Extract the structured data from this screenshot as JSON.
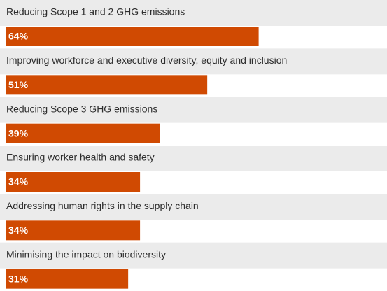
{
  "chart_data": {
    "type": "bar",
    "orientation": "horizontal",
    "categories": [
      "Reducing Scope 1 and 2 GHG emissions",
      "Improving workforce and executive diversity, equity and inclusion",
      "Reducing Scope 3 GHG emissions",
      "Ensuring worker health and safety",
      "Addressing human rights in the supply chain",
      "Minimising the impact on biodiversity"
    ],
    "values": [
      64,
      51,
      39,
      34,
      34,
      31
    ],
    "value_labels": [
      "64%",
      "51%",
      "39%",
      "34%",
      "34%",
      "31%"
    ],
    "color": "#d04a02"
  }
}
